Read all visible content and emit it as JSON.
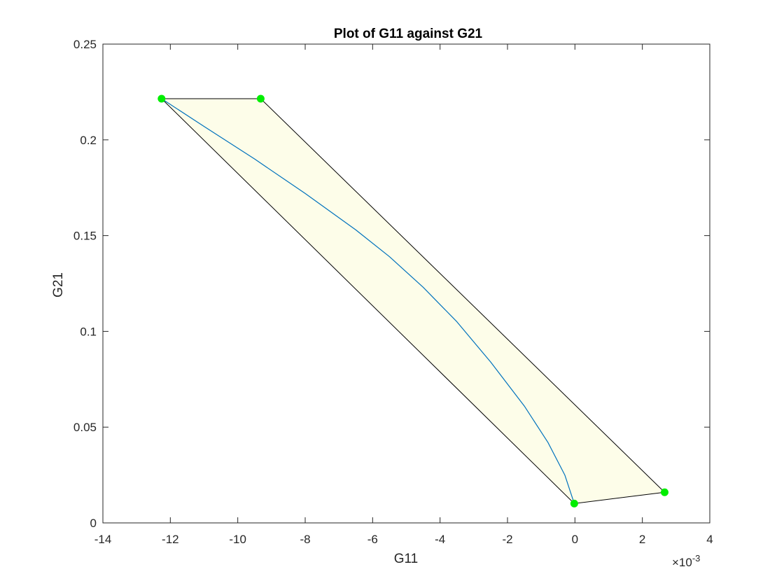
{
  "chart_data": {
    "type": "line",
    "title": "Plot of G11 against G21",
    "xlabel": "G11",
    "ylabel": "G21",
    "x_exponent_label": "×10",
    "x_exponent_power": "-3",
    "x_scale": 0.001,
    "xlim": [
      -0.014,
      0.004
    ],
    "ylim": [
      0,
      0.25
    ],
    "xticks": [
      -0.014,
      -0.012,
      -0.01,
      -0.008,
      -0.006,
      -0.004,
      -0.002,
      0,
      0.002,
      0.004
    ],
    "xtick_labels": [
      "-14",
      "-12",
      "-10",
      "-8",
      "-6",
      "-4",
      "-2",
      "0",
      "2",
      "4"
    ],
    "yticks": [
      0,
      0.05,
      0.1,
      0.15,
      0.2,
      0.25
    ],
    "ytick_labels": [
      "0",
      "0.05",
      "0.1",
      "0.15",
      "0.2",
      "0.25"
    ],
    "grid": false,
    "region": {
      "fill_color": "#fdfde9",
      "edge_color": "#000000",
      "vertices": [
        {
          "x": -0.01226,
          "y": 0.2215
        },
        {
          "x": -0.00932,
          "y": 0.2215
        },
        {
          "x": 0.00266,
          "y": 0.016
        },
        {
          "x": -2e-05,
          "y": 0.0101
        }
      ]
    },
    "vertex_points": {
      "color": "#00ee00",
      "points": [
        {
          "x": -0.01226,
          "y": 0.2215
        },
        {
          "x": -0.00932,
          "y": 0.2215
        },
        {
          "x": 0.00266,
          "y": 0.016
        },
        {
          "x": -2e-05,
          "y": 0.0101
        }
      ]
    },
    "curve": {
      "color": "#0072bd",
      "points": [
        {
          "x": -0.01226,
          "y": 0.2215
        },
        {
          "x": -0.011,
          "y": 0.207
        },
        {
          "x": -0.0095,
          "y": 0.19
        },
        {
          "x": -0.008,
          "y": 0.172
        },
        {
          "x": -0.0065,
          "y": 0.153
        },
        {
          "x": -0.0055,
          "y": 0.139
        },
        {
          "x": -0.0045,
          "y": 0.123
        },
        {
          "x": -0.0035,
          "y": 0.105
        },
        {
          "x": -0.0025,
          "y": 0.084
        },
        {
          "x": -0.0015,
          "y": 0.061
        },
        {
          "x": -0.0008,
          "y": 0.042
        },
        {
          "x": -0.0003,
          "y": 0.025
        },
        {
          "x": -2e-05,
          "y": 0.0101
        }
      ]
    }
  }
}
